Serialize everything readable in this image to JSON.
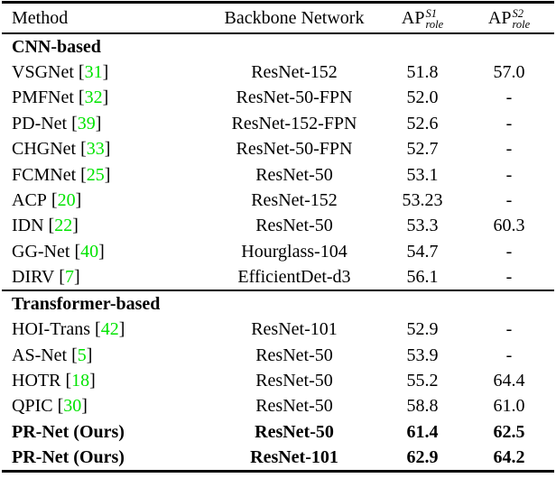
{
  "table": {
    "colors": {
      "citation_green": "#00e400",
      "rule_black": "#000000",
      "background": "#ffffff",
      "text": "#000000"
    },
    "citation_brackets": [
      "[",
      "]"
    ],
    "header": {
      "method": "Method",
      "backbone": "Backbone Network",
      "ap_s1": {
        "base": "AP",
        "sup": "S1",
        "sub": "role"
      },
      "ap_s2": {
        "base": "AP",
        "sup": "S2",
        "sub": "role"
      }
    },
    "sections": [
      {
        "title": "CNN-based",
        "rows": [
          {
            "method": "VSGNet",
            "cite": "31",
            "backbone": "ResNet-152",
            "ap_s1": "51.8",
            "ap_s2": "57.0",
            "bold": false
          },
          {
            "method": "PMFNet",
            "cite": "32",
            "backbone": "ResNet-50-FPN",
            "ap_s1": "52.0",
            "ap_s2": "-",
            "bold": false
          },
          {
            "method": "PD-Net",
            "cite": "39",
            "backbone": "ResNet-152-FPN",
            "ap_s1": "52.6",
            "ap_s2": "-",
            "bold": false
          },
          {
            "method": "CHGNet",
            "cite": "33",
            "backbone": "ResNet-50-FPN",
            "ap_s1": "52.7",
            "ap_s2": "-",
            "bold": false
          },
          {
            "method": "FCMNet",
            "cite": "25",
            "backbone": "ResNet-50",
            "ap_s1": "53.1",
            "ap_s2": "-",
            "bold": false
          },
          {
            "method": "ACP",
            "cite": "20",
            "backbone": "ResNet-152",
            "ap_s1": "53.23",
            "ap_s2": "-",
            "bold": false
          },
          {
            "method": "IDN",
            "cite": "22",
            "backbone": "ResNet-50",
            "ap_s1": "53.3",
            "ap_s2": "60.3",
            "bold": false
          },
          {
            "method": "GG-Net",
            "cite": "40",
            "backbone": "Hourglass-104",
            "ap_s1": "54.7",
            "ap_s2": "-",
            "bold": false
          },
          {
            "method": "DIRV",
            "cite": "7",
            "backbone": "EfficientDet-d3",
            "ap_s1": "56.1",
            "ap_s2": "-",
            "bold": false
          }
        ]
      },
      {
        "title": "Transformer-based",
        "rows": [
          {
            "method": "HOI-Trans",
            "cite": "42",
            "backbone": "ResNet-101",
            "ap_s1": "52.9",
            "ap_s2": "-",
            "bold": false
          },
          {
            "method": "AS-Net",
            "cite": "5",
            "backbone": "ResNet-50",
            "ap_s1": "53.9",
            "ap_s2": "-",
            "bold": false
          },
          {
            "method": "HOTR",
            "cite": "18",
            "backbone": "ResNet-50",
            "ap_s1": "55.2",
            "ap_s2": "64.4",
            "bold": false
          },
          {
            "method": "QPIC",
            "cite": "30",
            "backbone": "ResNet-50",
            "ap_s1": "58.8",
            "ap_s2": "61.0",
            "bold": false
          },
          {
            "method": "PR-Net (Ours)",
            "cite": null,
            "backbone": "ResNet-50",
            "ap_s1": "61.4",
            "ap_s2": "62.5",
            "bold": true
          },
          {
            "method": "PR-Net (Ours)",
            "cite": null,
            "backbone": "ResNet-101",
            "ap_s1": "62.9",
            "ap_s2": "64.2",
            "bold": true
          }
        ]
      }
    ]
  }
}
